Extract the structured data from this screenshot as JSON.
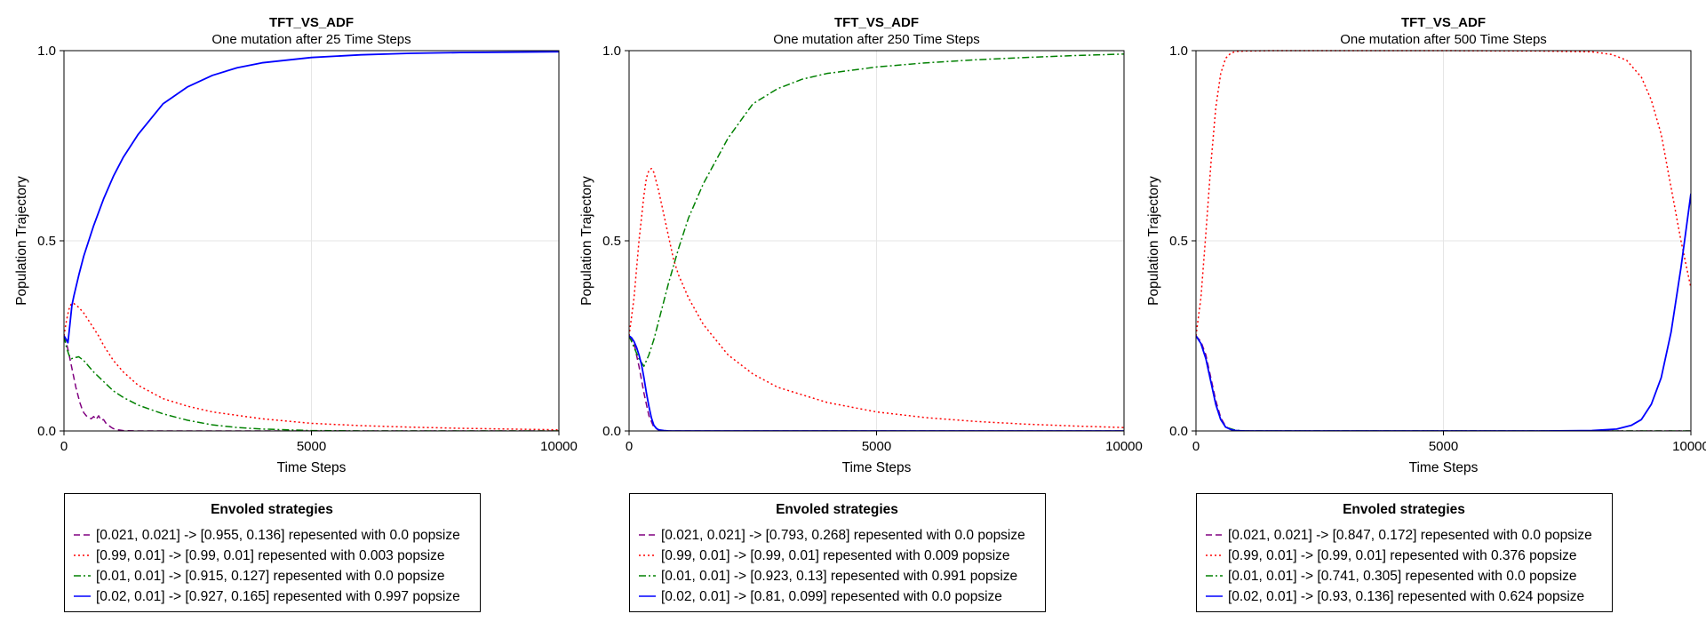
{
  "chart_data": [
    {
      "type": "line",
      "title": "TFT_VS_ADF",
      "subtitle": "One mutation after 25 Time Steps",
      "xlabel": "Time Steps",
      "ylabel": "Population Trajectory",
      "xlim": [
        0,
        10000
      ],
      "ylim": [
        0,
        1
      ],
      "xticks": [
        "0",
        "5000",
        "10000"
      ],
      "yticks": [
        "0.0",
        "0.5",
        "1.0"
      ],
      "grid": true,
      "legend": {
        "title": "Envoled strategies",
        "placement": "bottom"
      },
      "series": [
        {
          "name": "[0.021, 0.021] -> [0.955, 0.136] repesented with 0.0 popsize",
          "color": "#800080",
          "style": "dash",
          "x": [
            0,
            40,
            80,
            120,
            160,
            200,
            240,
            280,
            320,
            360,
            400,
            450,
            500,
            550,
            600,
            650,
            700,
            750,
            800,
            850,
            900,
            950,
            1000,
            1100,
            1200,
            1500,
            2000,
            3000,
            5000,
            7000,
            10000
          ],
          "y": [
            0.25,
            0.235,
            0.215,
            0.19,
            0.165,
            0.14,
            0.115,
            0.095,
            0.075,
            0.06,
            0.048,
            0.04,
            0.035,
            0.032,
            0.038,
            0.03,
            0.04,
            0.028,
            0.03,
            0.02,
            0.015,
            0.01,
            0.006,
            0.003,
            0.001,
            0,
            0,
            0,
            0,
            0,
            0
          ]
        },
        {
          "name": "[0.99, 0.01] -> [0.99, 0.01] repesented with 0.003 popsize",
          "color": "#ff0000",
          "style": "dot",
          "x": [
            0,
            50,
            100,
            150,
            200,
            300,
            400,
            500,
            600,
            700,
            800,
            1000,
            1200,
            1500,
            2000,
            2500,
            3000,
            4000,
            5000,
            6000,
            7000,
            8000,
            9000,
            10000
          ],
          "y": [
            0.25,
            0.29,
            0.32,
            0.335,
            0.335,
            0.325,
            0.31,
            0.29,
            0.27,
            0.25,
            0.225,
            0.185,
            0.155,
            0.12,
            0.085,
            0.065,
            0.05,
            0.032,
            0.02,
            0.014,
            0.01,
            0.007,
            0.005,
            0.003
          ]
        },
        {
          "name": "[0.01, 0.01] -> [0.915, 0.127] repesented with 0.0 popsize",
          "color": "#008000",
          "style": "dashdot",
          "x": [
            0,
            50,
            100,
            150,
            200,
            300,
            400,
            500,
            600,
            800,
            1000,
            1200,
            1500,
            2000,
            2500,
            3000,
            3500,
            4000,
            5000,
            6000,
            8000,
            10000
          ],
          "y": [
            0.25,
            0.22,
            0.2,
            0.19,
            0.192,
            0.195,
            0.185,
            0.17,
            0.155,
            0.13,
            0.105,
            0.088,
            0.068,
            0.045,
            0.028,
            0.016,
            0.009,
            0.005,
            0.001,
            0,
            0,
            0
          ]
        },
        {
          "name": "[0.02, 0.01] -> [0.927, 0.165] repesented with 0.997 popsize",
          "color": "#0000ff",
          "style": "solid",
          "x": [
            0,
            50,
            80,
            120,
            160,
            200,
            300,
            400,
            500,
            600,
            800,
            1000,
            1200,
            1500,
            2000,
            2500,
            3000,
            3500,
            4000,
            5000,
            6000,
            7000,
            8000,
            9000,
            10000
          ],
          "y": [
            0.25,
            0.24,
            0.232,
            0.28,
            0.33,
            0.355,
            0.41,
            0.46,
            0.5,
            0.54,
            0.61,
            0.67,
            0.72,
            0.78,
            0.86,
            0.905,
            0.935,
            0.955,
            0.968,
            0.982,
            0.989,
            0.993,
            0.995,
            0.996,
            0.997
          ]
        }
      ]
    },
    {
      "type": "line",
      "title": "TFT_VS_ADF",
      "subtitle": "One mutation after 250 Time Steps",
      "xlabel": "Time Steps",
      "ylabel": "Population Trajectory",
      "xlim": [
        0,
        10000
      ],
      "ylim": [
        0,
        1
      ],
      "xticks": [
        "0",
        "5000",
        "10000"
      ],
      "yticks": [
        "0.0",
        "0.5",
        "1.0"
      ],
      "grid": true,
      "legend": {
        "title": "Envoled strategies",
        "placement": "bottom"
      },
      "series": [
        {
          "name": "[0.021, 0.021] -> [0.793, 0.268] repesented with 0.0 popsize",
          "color": "#800080",
          "style": "dash",
          "x": [
            0,
            100,
            200,
            300,
            400,
            500,
            600,
            800,
            1000,
            10000
          ],
          "y": [
            0.25,
            0.23,
            0.17,
            0.1,
            0.04,
            0.01,
            0.002,
            0,
            0,
            0
          ]
        },
        {
          "name": "[0.99, 0.01] -> [0.99, 0.01] repesented with 0.009 popsize",
          "color": "#ff0000",
          "style": "dot",
          "x": [
            0,
            100,
            200,
            300,
            350,
            400,
            450,
            500,
            600,
            700,
            800,
            900,
            1000,
            1200,
            1500,
            2000,
            2500,
            3000,
            4000,
            5000,
            6000,
            7000,
            8000,
            9000,
            10000
          ],
          "y": [
            0.25,
            0.35,
            0.5,
            0.62,
            0.665,
            0.685,
            0.69,
            0.68,
            0.63,
            0.57,
            0.51,
            0.45,
            0.41,
            0.35,
            0.28,
            0.2,
            0.15,
            0.115,
            0.075,
            0.05,
            0.035,
            0.025,
            0.018,
            0.013,
            0.009
          ]
        },
        {
          "name": "[0.01, 0.01] -> [0.923, 0.13] repesented with 0.991 popsize",
          "color": "#008000",
          "style": "dashdot",
          "x": [
            0,
            100,
            200,
            300,
            400,
            500,
            600,
            800,
            1000,
            1200,
            1500,
            2000,
            2500,
            3000,
            3500,
            4000,
            5000,
            6000,
            7000,
            8000,
            9000,
            10000
          ],
          "y": [
            0.25,
            0.22,
            0.19,
            0.17,
            0.2,
            0.24,
            0.29,
            0.39,
            0.48,
            0.56,
            0.65,
            0.77,
            0.86,
            0.9,
            0.925,
            0.94,
            0.957,
            0.968,
            0.976,
            0.982,
            0.987,
            0.991
          ]
        },
        {
          "name": "[0.02, 0.01] -> [0.81, 0.099] repesented with 0.0 popsize",
          "color": "#0000ff",
          "style": "solid",
          "x": [
            0,
            50,
            100,
            150,
            200,
            250,
            300,
            350,
            400,
            450,
            500,
            550,
            600,
            700,
            800,
            1000,
            10000
          ],
          "y": [
            0.25,
            0.245,
            0.235,
            0.22,
            0.2,
            0.175,
            0.14,
            0.1,
            0.065,
            0.035,
            0.015,
            0.007,
            0.003,
            0.001,
            0,
            0,
            0
          ]
        }
      ]
    },
    {
      "type": "line",
      "title": "TFT_VS_ADF",
      "subtitle": "One mutation after 500 Time Steps",
      "xlabel": "Time Steps",
      "ylabel": "Population Trajectory",
      "xlim": [
        0,
        10000
      ],
      "ylim": [
        0,
        1
      ],
      "xticks": [
        "0",
        "5000",
        "10000"
      ],
      "yticks": [
        "0.0",
        "0.5",
        "1.0"
      ],
      "grid": true,
      "legend": {
        "title": "Envoled strategies",
        "placement": "bottom"
      },
      "series": [
        {
          "name": "[0.021, 0.021] -> [0.847, 0.172] repesented with 0.0 popsize",
          "color": "#800080",
          "style": "dash",
          "x": [
            0,
            100,
            200,
            300,
            400,
            500,
            600,
            700,
            800,
            1000,
            10000
          ],
          "y": [
            0.25,
            0.235,
            0.2,
            0.14,
            0.08,
            0.035,
            0.012,
            0.004,
            0.001,
            0,
            0
          ]
        },
        {
          "name": "[0.99, 0.01] -> [0.99, 0.01] repesented with 0.376 popsize",
          "color": "#ff0000",
          "style": "dot",
          "x": [
            0,
            100,
            200,
            300,
            400,
            500,
            600,
            700,
            800,
            1000,
            1500,
            2000,
            5000,
            7000,
            8000,
            8400,
            8700,
            9000,
            9200,
            9400,
            9600,
            9800,
            10000
          ],
          "y": [
            0.25,
            0.35,
            0.52,
            0.7,
            0.85,
            0.94,
            0.98,
            0.993,
            0.998,
            0.999,
            1,
            1,
            1,
            0.999,
            0.997,
            0.99,
            0.975,
            0.93,
            0.87,
            0.78,
            0.64,
            0.5,
            0.376
          ]
        },
        {
          "name": "[0.01, 0.01] -> [0.741, 0.305] repesented with 0.0 popsize",
          "color": "#008000",
          "style": "dashdot",
          "x": [
            0,
            100,
            200,
            300,
            400,
            500,
            600,
            800,
            1000,
            10000
          ],
          "y": [
            0.25,
            0.23,
            0.19,
            0.13,
            0.07,
            0.03,
            0.01,
            0.002,
            0,
            0
          ]
        },
        {
          "name": "[0.02, 0.01] -> [0.93, 0.136] repesented with 0.624 popsize",
          "color": "#0000ff",
          "style": "solid",
          "x": [
            0,
            100,
            200,
            300,
            400,
            500,
            600,
            700,
            800,
            1000,
            2000,
            5000,
            7000,
            8000,
            8500,
            8800,
            9000,
            9200,
            9400,
            9600,
            9800,
            10000
          ],
          "y": [
            0.25,
            0.23,
            0.19,
            0.13,
            0.07,
            0.03,
            0.01,
            0.004,
            0.001,
            0,
            0,
            0,
            0,
            0.001,
            0.005,
            0.015,
            0.03,
            0.07,
            0.14,
            0.26,
            0.43,
            0.624
          ]
        }
      ]
    }
  ]
}
